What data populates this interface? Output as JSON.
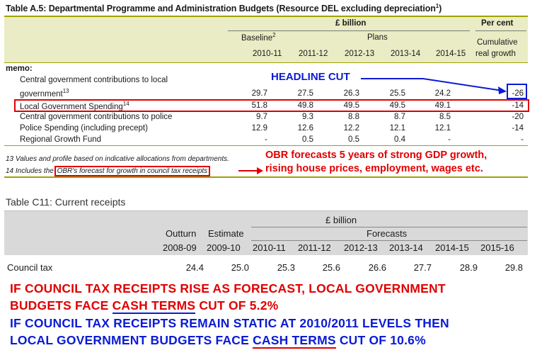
{
  "table1": {
    "title": "Table A.5: Departmental Programme and Administration Budgets (Resource DEL excluding depreciation",
    "title_sup": "1",
    "title_close": ")",
    "unit_label": "£ billion",
    "pc_label": "Per cent",
    "baseline_label": "Baseline",
    "baseline_sup": "2",
    "plans_label": "Plans",
    "cumulative_label_1": "Cumulative",
    "cumulative_label_2": "real growth",
    "years": [
      "2010-11",
      "2011-12",
      "2012-13",
      "2013-14",
      "2014-15"
    ],
    "memo_label": "memo:",
    "rows": [
      {
        "label": "Central government contributions to local",
        "label2": "government",
        "sup": "13",
        "values": [
          "29.7",
          "27.5",
          "26.3",
          "25.5",
          "24.2"
        ],
        "growth": "-26"
      },
      {
        "label": "Local Government Spending",
        "sup": "14",
        "values": [
          "51.8",
          "49.8",
          "49.5",
          "49.5",
          "49.1"
        ],
        "growth": "-14"
      },
      {
        "label": "Central government contributions to police",
        "values": [
          "9.7",
          "9.3",
          "8.8",
          "8.7",
          "8.5"
        ],
        "growth": "-20"
      },
      {
        "label": "Police Spending (including precept)",
        "values": [
          "12.9",
          "12.6",
          "12.2",
          "12.1",
          "12.1"
        ],
        "growth": "-14"
      },
      {
        "label": "Regional Growth Fund",
        "values": [
          "-",
          "0.5",
          "0.5",
          "0.4",
          "-"
        ],
        "growth": "-"
      }
    ],
    "footnote_13": "13 Values and profile based on indicative allocations from departments.",
    "footnote_14_prefix": "14 Includes the",
    "footnote_14_boxed": "OBR's forecast for growth in council tax receipts"
  },
  "annotations": {
    "headline_cut": "HEADLINE CUT",
    "obr_line1": "OBR forecasts 5 years of strong GDP growth,",
    "obr_line2": "rising house prices, employment, wages etc.",
    "conclusion1_line1": "IF COUNCIL TAX RECEIPTS RISE AS FORECAST, LOCAL GOVERNMENT",
    "conclusion1_line2_pre": "BUDGETS FACE ",
    "conclusion1_line2_ul": "CASH TERMS",
    "conclusion1_line2_post": " CUT OF 5.2%",
    "conclusion2_line1": "IF COUNCIL TAX RECEIPTS REMAIN STATIC AT 2010/2011 LEVELS THEN",
    "conclusion2_line2_pre": "LOCAL GOVERNMENT BUDGETS FACE ",
    "conclusion2_line2_ul": "CASH TERMS",
    "conclusion2_line2_post": " CUT OF 10.6%"
  },
  "table2": {
    "title": "Table C11: Current receipts",
    "unit_label": "£ billion",
    "outturn_label": "Outturn",
    "estimate_label": "Estimate",
    "forecasts_label": "Forecasts",
    "years": [
      "2008-09",
      "2009-10",
      "2010-11",
      "2011-12",
      "2012-13",
      "2013-14",
      "2014-15",
      "2015-16"
    ],
    "row_label": "Council tax",
    "values": [
      "24.4",
      "25.0",
      "25.3",
      "25.6",
      "26.6",
      "27.7",
      "28.9",
      "29.8"
    ]
  },
  "colors": {
    "red": "#e00000",
    "blue": "#0a1bd4",
    "olive": "#9ea300",
    "header_bg": "#e9ecc4"
  }
}
